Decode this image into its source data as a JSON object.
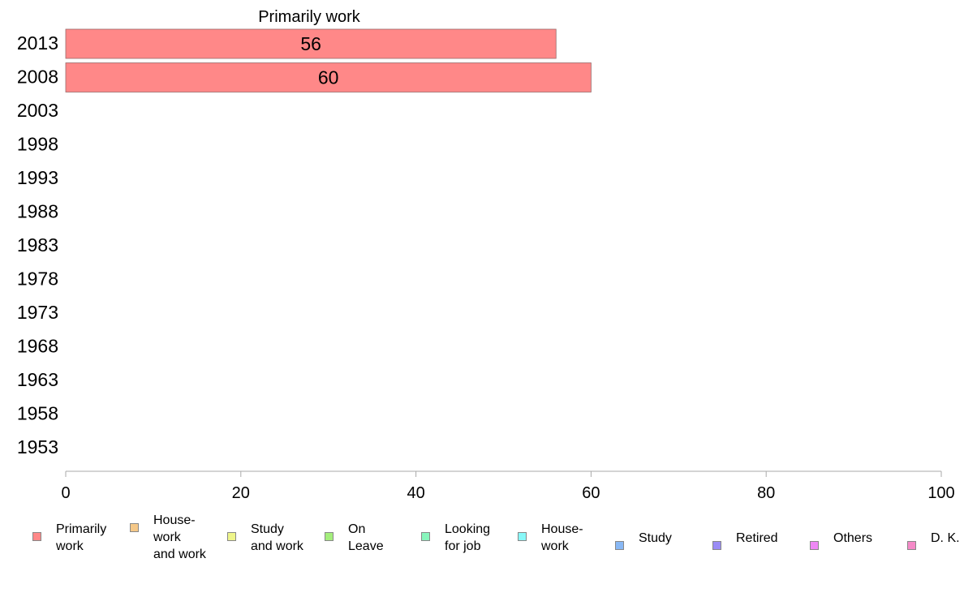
{
  "chart_data": {
    "type": "bar",
    "orientation": "horizontal",
    "title": "Primarily work",
    "xlim": [
      0,
      100
    ],
    "x_ticks": [
      0,
      20,
      40,
      60,
      80,
      100
    ],
    "categories": [
      "2013",
      "2008",
      "2003",
      "1998",
      "1993",
      "1988",
      "1983",
      "1978",
      "1973",
      "1968",
      "1963",
      "1958",
      "1953"
    ],
    "series": [
      {
        "name": "Primarily work",
        "values": [
          56,
          60,
          null,
          null,
          null,
          null,
          null,
          null,
          null,
          null,
          null,
          null,
          null
        ]
      }
    ],
    "data_labels": [
      "56",
      "60",
      "",
      "",
      "",
      "",
      "",
      "",
      "",
      "",
      "",
      "",
      ""
    ],
    "grid": false,
    "legend_position": "bottom",
    "legend": [
      {
        "label": "Primarily\nwork",
        "color": "#ff8888"
      },
      {
        "label": "House-\nwork\nand work",
        "color": "#f5c888"
      },
      {
        "label": "Study\nand work",
        "color": "#eef58a"
      },
      {
        "label": "On\nLeave",
        "color": "#a4ee7c"
      },
      {
        "label": "Looking\nfor job",
        "color": "#88f5bc"
      },
      {
        "label": "House-\nwork",
        "color": "#88f8f8"
      },
      {
        "label": "Study",
        "color": "#88b8f5"
      },
      {
        "label": "Retired",
        "color": "#9a8cf5"
      },
      {
        "label": "Others",
        "color": "#ee88f5"
      },
      {
        "label": "D. K.",
        "color": "#f58ac8"
      }
    ]
  }
}
